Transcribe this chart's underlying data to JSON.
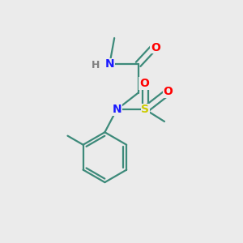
{
  "background_color": "#ebebeb",
  "bond_color": "#3d8a7a",
  "atom_colors": {
    "N": "#1a1aff",
    "O": "#ff0000",
    "S": "#cccc00",
    "H": "#808080",
    "C": "#3d8a7a"
  },
  "figsize": [
    3.0,
    3.0
  ],
  "dpi": 100,
  "lw": 1.6,
  "fs": 10
}
